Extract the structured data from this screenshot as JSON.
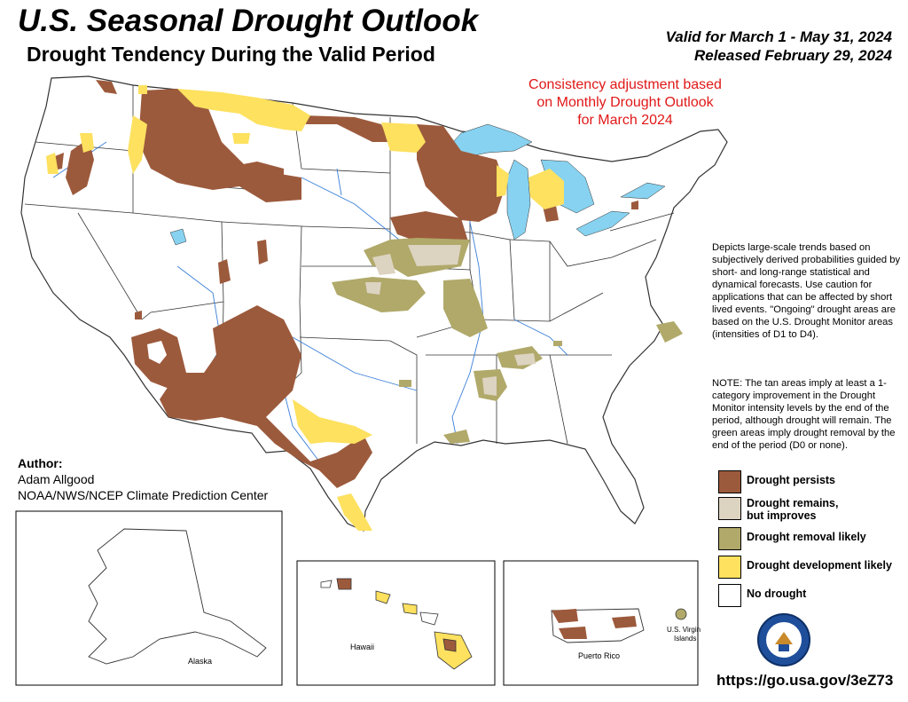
{
  "header": {
    "title": "U.S. Seasonal Drought Outlook",
    "subtitle": "Drought Tendency During the Valid Period",
    "valid": "Valid for March 1 - May 31, 2024",
    "released": "Released February 29, 2024"
  },
  "annotation": {
    "consistency": "Consistency adjustment based on Monthly Drought Outlook for March 2024"
  },
  "description": "Depicts large-scale trends based on subjectively derived probabilities guided by short- and long-range statistical and dynamical forecasts. Use caution for applications that can be affected by short lived events. \"Ongoing\" drought areas are based on the U.S. Drought Monitor areas (intensities of D1 to D4).",
  "note": "NOTE: The tan areas imply at least a 1-category improvement in the Drought Monitor intensity levels by the end of the period, although drought will remain. The green areas imply drought removal by the end of the period (D0 or none).",
  "legend": [
    {
      "label": "Drought persists",
      "color": "#9c5a3c"
    },
    {
      "label": "Drought remains, but improves",
      "color": "#ddd3c1"
    },
    {
      "label": "Drought removal likely",
      "color": "#b0a96a"
    },
    {
      "label": "Drought development likely",
      "color": "#fde15f"
    },
    {
      "label": "No drought",
      "color": "#ffffff"
    }
  ],
  "author": {
    "heading": "Author:",
    "name": "Adam Allgood",
    "org": "NOAA/NWS/NCEP Climate Prediction Center"
  },
  "insets": {
    "alaska": "Alaska",
    "hawaii": "Hawaii",
    "puerto_rico": "Puerto Rico",
    "virgin_islands_1": "U.S. Virgin",
    "virgin_islands_2": "Islands"
  },
  "url": "https://go.usa.gov/3eZ73",
  "colors": {
    "persists": "#9c5a3c",
    "improves": "#ddd3c1",
    "removal": "#b0a96a",
    "development": "#fde15f",
    "water": "#87d2f0",
    "rivers": "#3a7fd8",
    "borders": "#333333",
    "consistency_text": "#e01818"
  },
  "icons": [
    "doc-seal-icon"
  ]
}
